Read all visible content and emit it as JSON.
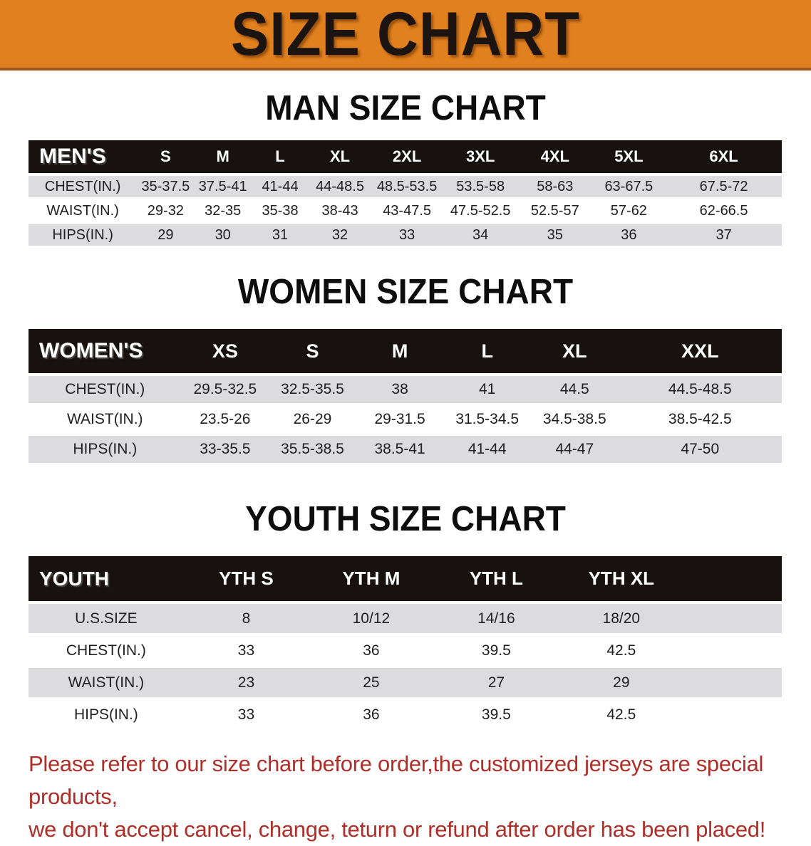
{
  "banner": {
    "title": "SIZE CHART"
  },
  "men": {
    "heading": "MAN SIZE CHART",
    "label": "MEN'S",
    "sizes": [
      "S",
      "M",
      "L",
      "XL",
      "2XL",
      "3XL",
      "4XL",
      "5XL",
      "6XL"
    ],
    "rows": [
      {
        "label": "CHEST(IN.)",
        "cells": [
          "35-37.5",
          "37.5-41",
          "41-44",
          "44-48.5",
          "48.5-53.5",
          "53.5-58",
          "58-63",
          "63-67.5",
          "67.5-72"
        ]
      },
      {
        "label": "WAIST(IN.)",
        "cells": [
          "29-32",
          "32-35",
          "35-38",
          "38-43",
          "43-47.5",
          "47.5-52.5",
          "52.5-57",
          "57-62",
          "62-66.5"
        ]
      },
      {
        "label": "HIPS(IN.)",
        "cells": [
          "29",
          "30",
          "31",
          "32",
          "33",
          "34",
          "35",
          "36",
          "37"
        ]
      }
    ]
  },
  "women": {
    "heading": "WOMEN SIZE CHART",
    "label": "WOMEN'S",
    "sizes": [
      "XS",
      "S",
      "M",
      "L",
      "XL",
      "XXL"
    ],
    "rows": [
      {
        "label": "CHEST(IN.)",
        "cells": [
          "29.5-32.5",
          "32.5-35.5",
          "38",
          "41",
          "44.5",
          "44.5-48.5"
        ]
      },
      {
        "label": "WAIST(IN.)",
        "cells": [
          "23.5-26",
          "26-29",
          "29-31.5",
          "31.5-34.5",
          "34.5-38.5",
          "38.5-42.5"
        ]
      },
      {
        "label": "HIPS(IN.)",
        "cells": [
          "33-35.5",
          "35.5-38.5",
          "38.5-41",
          "41-44",
          "44-47",
          "47-50"
        ]
      }
    ]
  },
  "youth": {
    "heading": "YOUTH SIZE CHART",
    "label": "YOUTH",
    "sizes": [
      "YTH S",
      "YTH M",
      "YTH L",
      "YTH XL"
    ],
    "rows": [
      {
        "label": "U.S.SIZE",
        "cells": [
          "8",
          "10/12",
          "14/16",
          "18/20"
        ]
      },
      {
        "label": "CHEST(IN.)",
        "cells": [
          "33",
          "36",
          "39.5",
          "42.5"
        ]
      },
      {
        "label": "WAIST(IN.)",
        "cells": [
          "23",
          "25",
          "27",
          "29"
        ]
      },
      {
        "label": "HIPS(IN.)",
        "cells": [
          "33",
          "36",
          "39.5",
          "42.5"
        ]
      }
    ]
  },
  "disclaimer": {
    "line1": "Please refer to our size chart before order,the customized jerseys are special products,",
    "line2": "we don't accept cancel, change, teturn or refund after order has been placed!"
  },
  "colors": {
    "banner_bg": "#e0801e",
    "banner_border": "#a2571a",
    "header_bg": "#17120f",
    "row_alt": "#dcdcde",
    "disclaimer": "#b02e28"
  }
}
